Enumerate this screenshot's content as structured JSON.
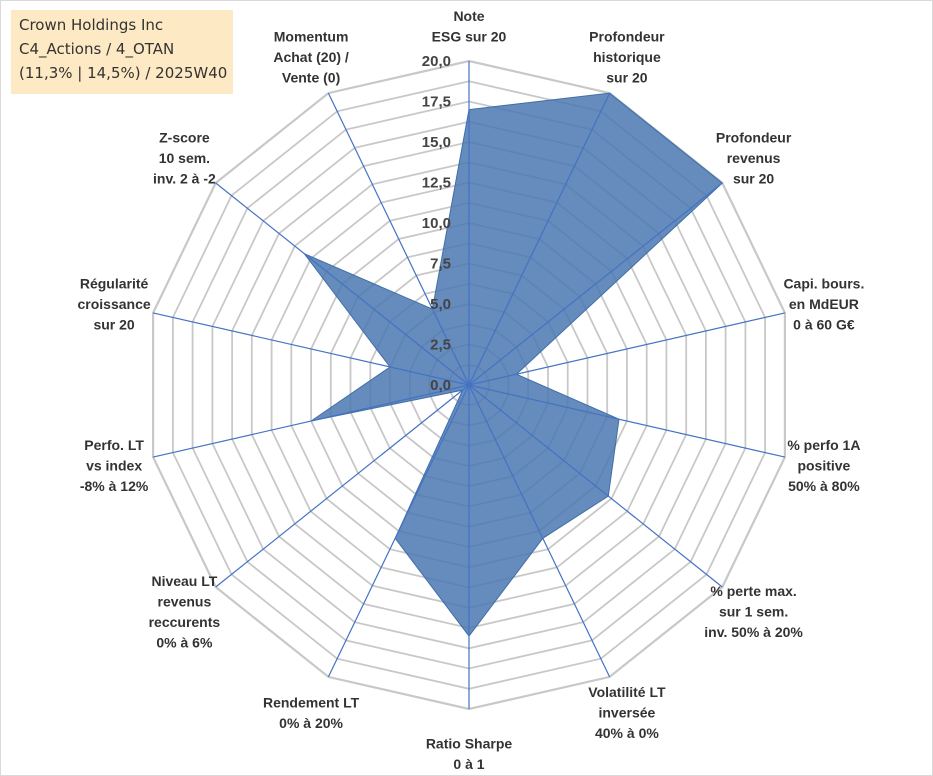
{
  "info": {
    "company": "Crown Holdings Inc",
    "category": "C4_Actions / 4_OTAN",
    "stats": "(11,3% | 14,5%) / 2025W40"
  },
  "chart_data": {
    "type": "radar",
    "range": [
      0,
      20
    ],
    "ticks": [
      "0,0",
      "2,5",
      "5,0",
      "7,5",
      "10,0",
      "12,5",
      "15,0",
      "17,5",
      "20,0"
    ],
    "axes": [
      [
        "Note",
        "ESG sur 20"
      ],
      [
        "Profondeur",
        "historique",
        "sur 20"
      ],
      [
        "Profondeur",
        "revenus",
        "sur 20"
      ],
      [
        "Capi. bours.",
        "en MdEUR",
        "0 à 60 G€"
      ],
      [
        "% perfo 1A",
        "positive",
        "50% à 80%"
      ],
      [
        "% perte max.",
        "sur 1 sem.",
        "inv. 50% à 20%"
      ],
      [
        "Volatilité LT",
        "inversée",
        "40% à 0%"
      ],
      [
        "Ratio Sharpe",
        "0 à 1"
      ],
      [
        "Rendement LT",
        "0% à 20%"
      ],
      [
        "Niveau LT",
        "revenus",
        "reccurents",
        "0% à 6%"
      ],
      [
        "Perfo. LT",
        "vs index",
        "-8% à 12%"
      ],
      [
        "Régularité",
        "croissance",
        "sur 20"
      ],
      [
        "Z-score",
        "10 sem.",
        "inv. 2 à -2"
      ],
      [
        "Momentum",
        "Achat (20) /",
        "Vente (0)"
      ]
    ],
    "series": [
      {
        "name": "Crown Holdings Inc",
        "values": [
          17,
          20,
          20,
          3,
          9.5,
          11,
          10.5,
          15.5,
          10.5,
          0.5,
          10,
          5,
          13,
          5.2
        ]
      }
    ],
    "colors": {
      "fill": "#4a78b0",
      "stroke": "#3f6fa8",
      "grid": "#c8c8c8",
      "spoke": "#4472c4"
    }
  }
}
